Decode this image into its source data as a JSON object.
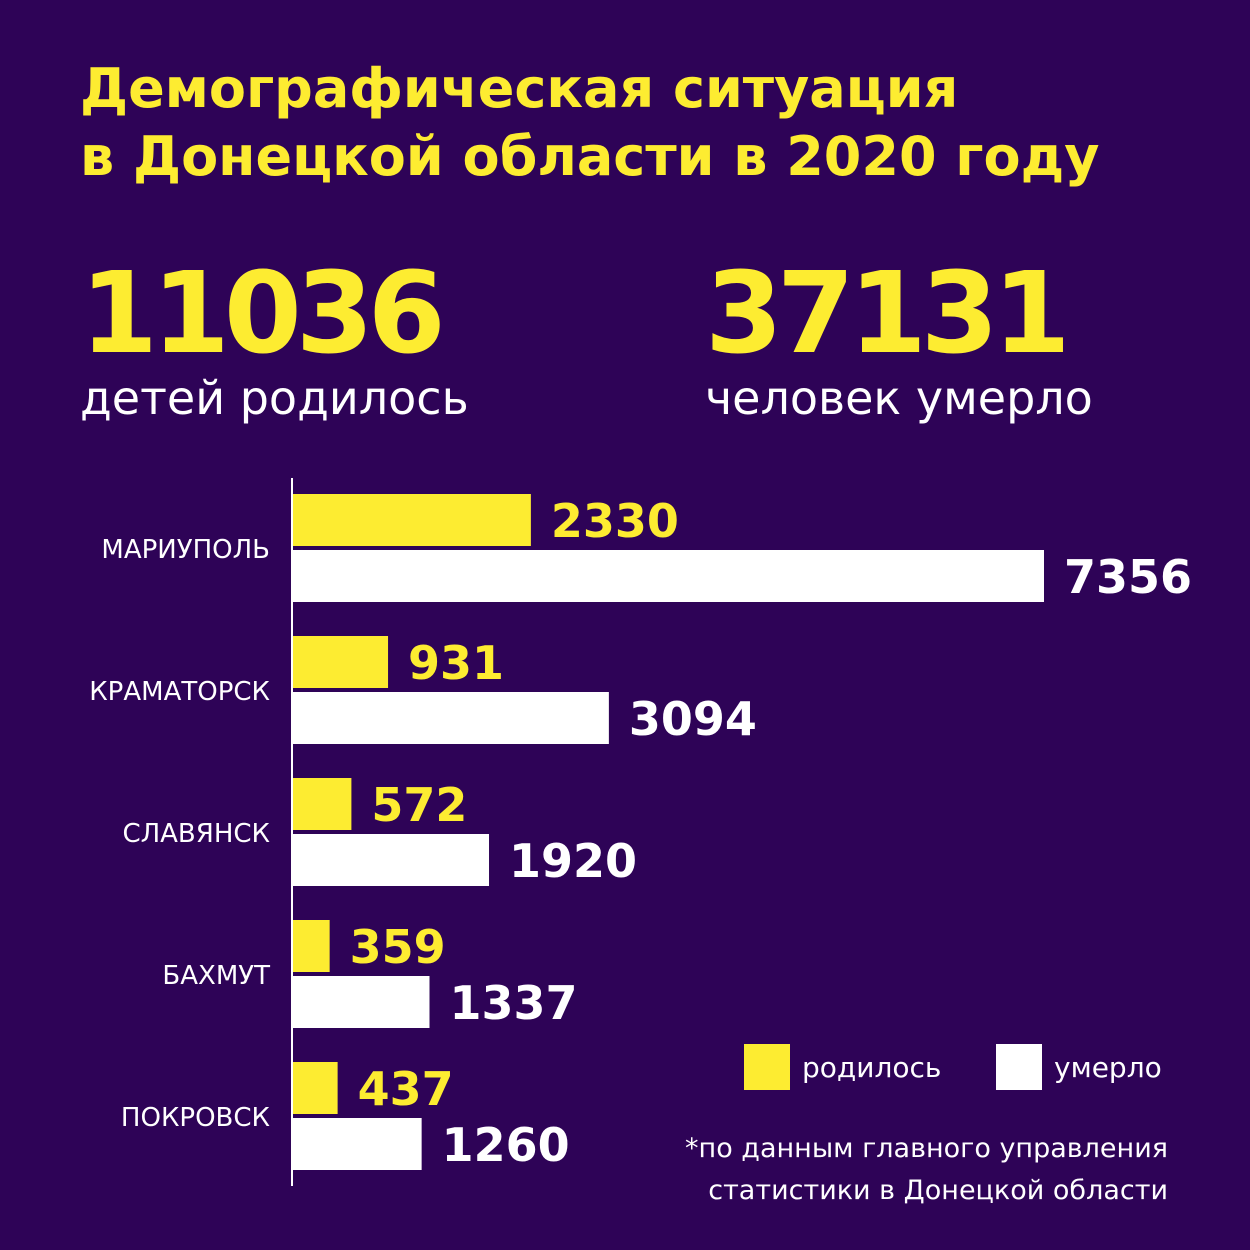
{
  "title": {
    "line1": "Демографическая ситуация",
    "line2": "в Донецкой области в 2020 году"
  },
  "stats": {
    "born": {
      "value": "11036",
      "caption": "детей родилось"
    },
    "died": {
      "value": "37131",
      "caption": "человек умерло"
    }
  },
  "colors": {
    "background": "#2e0357",
    "born": "#fdec31",
    "died": "#ffffff"
  },
  "chart_data": {
    "type": "bar",
    "orientation": "horizontal",
    "categories": [
      "МАРИУПОЛЬ",
      "КРАМАТОРСК",
      "СЛАВЯНСК",
      "БАХМУТ",
      "ПОКРОВСК"
    ],
    "series": [
      {
        "name": "родилось",
        "values": [
          2330,
          931,
          572,
          359,
          437
        ],
        "color": "#fdec31"
      },
      {
        "name": "умерло",
        "values": [
          7356,
          3094,
          1920,
          1337,
          1260
        ],
        "color": "#ffffff"
      }
    ]
  },
  "legend": {
    "born_label": "родилось",
    "died_label": "умерло"
  },
  "footnote": {
    "line1": "*по данным главного управления",
    "line2": "статистики в Донецкой области"
  }
}
